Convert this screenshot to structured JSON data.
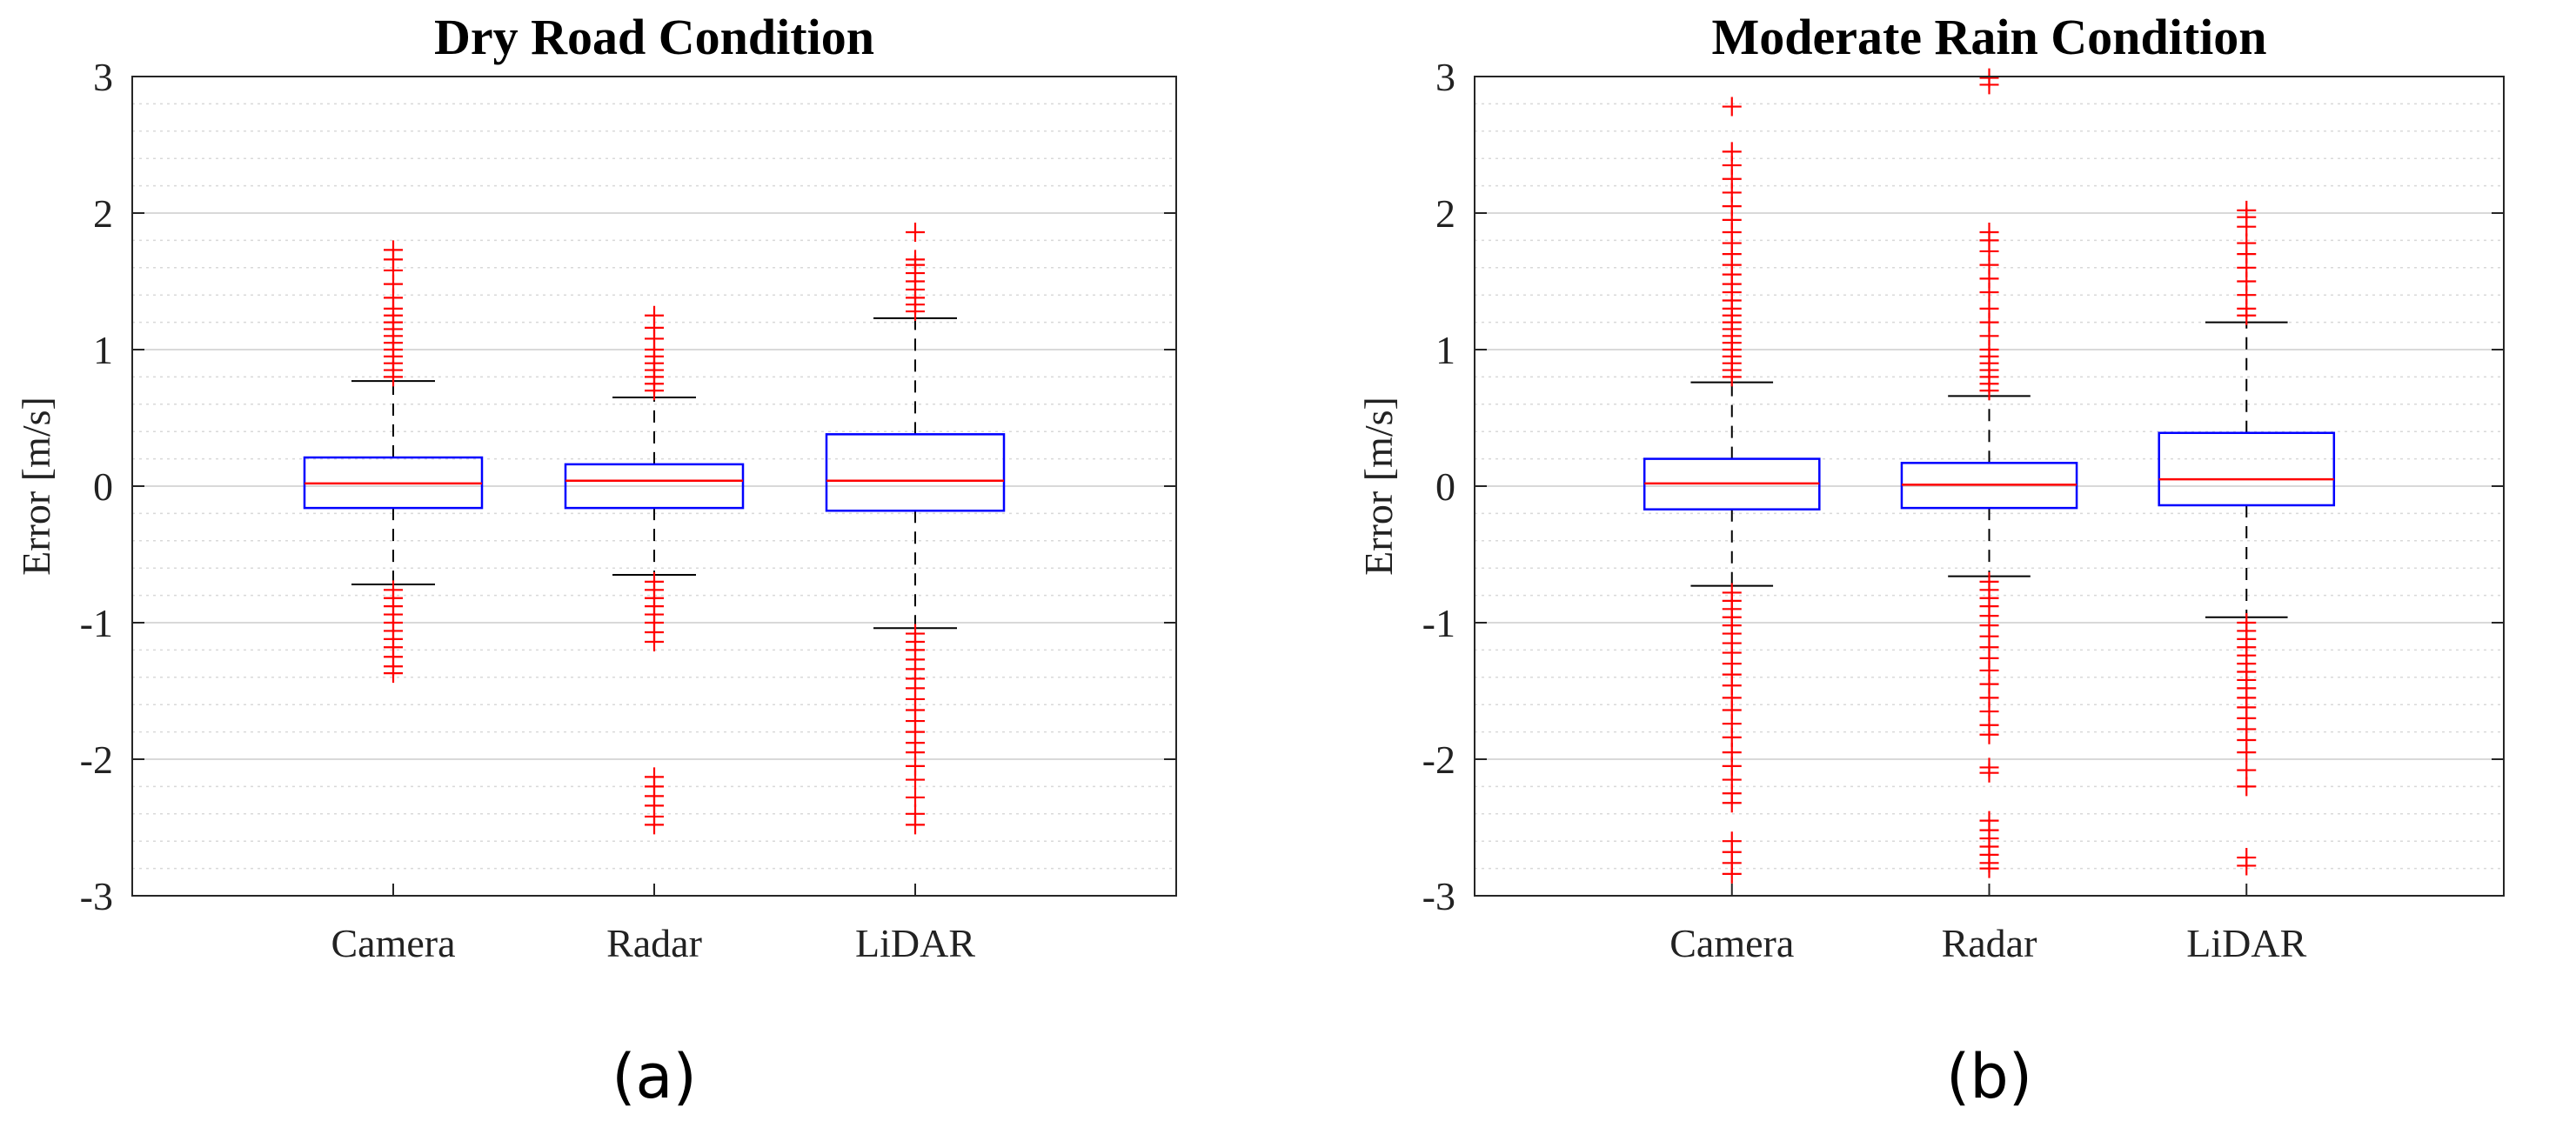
{
  "chart_data": [
    {
      "type": "box",
      "title": "Dry Road Condition",
      "caption": "(a)",
      "xlabel": "",
      "ylabel": "Error [m/s]",
      "ylim": [
        -3,
        3
      ],
      "yticks": [
        -3,
        -2,
        -1,
        0,
        1,
        2,
        3
      ],
      "grid": true,
      "categories": [
        "Camera",
        "Radar",
        "LiDAR"
      ],
      "boxes": [
        {
          "name": "Camera",
          "q1": -0.16,
          "median": 0.02,
          "q3": 0.21,
          "whisker_low": -0.72,
          "whisker_high": 0.77,
          "outliers_high": [
            0.8,
            0.85,
            0.9,
            0.95,
            1.0,
            1.05,
            1.1,
            1.15,
            1.2,
            1.25,
            1.3,
            1.38,
            1.48,
            1.58,
            1.66,
            1.73
          ],
          "outliers_low": [
            -0.76,
            -0.82,
            -0.88,
            -0.94,
            -1.0,
            -1.06,
            -1.12,
            -1.18,
            -1.25,
            -1.32,
            -1.37
          ]
        },
        {
          "name": "Radar",
          "q1": -0.16,
          "median": 0.04,
          "q3": 0.16,
          "whisker_low": -0.65,
          "whisker_high": 0.65,
          "outliers_high": [
            0.7,
            0.75,
            0.8,
            0.85,
            0.9,
            0.95,
            1.0,
            1.08,
            1.16,
            1.25
          ],
          "outliers_low": [
            -0.7,
            -0.76,
            -0.82,
            -0.88,
            -0.94,
            -1.0,
            -1.07,
            -1.14,
            -2.13,
            -2.2,
            -2.27,
            -2.34,
            -2.42,
            -2.48
          ]
        },
        {
          "name": "LiDAR",
          "q1": -0.18,
          "median": 0.04,
          "q3": 0.38,
          "whisker_low": -1.04,
          "whisker_high": 1.23,
          "outliers_high": [
            1.28,
            1.33,
            1.38,
            1.44,
            1.5,
            1.56,
            1.62,
            1.66,
            1.86
          ],
          "outliers_low": [
            -1.08,
            -1.14,
            -1.2,
            -1.27,
            -1.34,
            -1.41,
            -1.48,
            -1.56,
            -1.64,
            -1.72,
            -1.8,
            -1.88,
            -1.95,
            -2.05,
            -2.15,
            -2.28,
            -2.4,
            -2.48
          ]
        }
      ]
    },
    {
      "type": "box",
      "title": "Moderate Rain Condition",
      "caption": "(b)",
      "xlabel": "",
      "ylabel": "Error [m/s]",
      "ylim": [
        -3,
        3
      ],
      "yticks": [
        -3,
        -2,
        -1,
        0,
        1,
        2,
        3
      ],
      "grid": true,
      "categories": [
        "Camera",
        "Radar",
        "LiDAR"
      ],
      "boxes": [
        {
          "name": "Camera",
          "q1": -0.17,
          "median": 0.02,
          "q3": 0.2,
          "whisker_low": -0.73,
          "whisker_high": 0.76,
          "outliers_high": [
            0.8,
            0.85,
            0.9,
            0.95,
            1.0,
            1.05,
            1.1,
            1.15,
            1.2,
            1.25,
            1.3,
            1.36,
            1.42,
            1.48,
            1.55,
            1.62,
            1.7,
            1.78,
            1.86,
            1.95,
            2.05,
            2.15,
            2.25,
            2.35,
            2.45,
            2.78
          ],
          "outliers_low": [
            -0.78,
            -0.84,
            -0.9,
            -0.96,
            -1.02,
            -1.08,
            -1.15,
            -1.22,
            -1.3,
            -1.38,
            -1.46,
            -1.55,
            -1.64,
            -1.74,
            -1.84,
            -1.95,
            -2.05,
            -2.15,
            -2.25,
            -2.32,
            -2.6,
            -2.68,
            -2.76,
            -2.84
          ]
        },
        {
          "name": "Radar",
          "q1": -0.16,
          "median": 0.01,
          "q3": 0.17,
          "whisker_low": -0.66,
          "whisker_high": 0.66,
          "outliers_high": [
            0.7,
            0.75,
            0.8,
            0.85,
            0.9,
            0.95,
            1.0,
            1.1,
            1.2,
            1.3,
            1.42,
            1.52,
            1.62,
            1.72,
            1.8,
            1.86,
            2.94,
            2.99
          ],
          "outliers_low": [
            -0.7,
            -0.76,
            -0.82,
            -0.88,
            -0.95,
            -1.02,
            -1.1,
            -1.18,
            -1.26,
            -1.35,
            -1.45,
            -1.55,
            -1.65,
            -1.75,
            -1.82,
            -2.06,
            -2.1,
            -2.45,
            -2.52,
            -2.58,
            -2.64,
            -2.7,
            -2.76,
            -2.8
          ]
        },
        {
          "name": "LiDAR",
          "q1": -0.14,
          "median": 0.05,
          "q3": 0.39,
          "whisker_low": -0.96,
          "whisker_high": 1.2,
          "outliers_high": [
            1.25,
            1.3,
            1.4,
            1.5,
            1.6,
            1.7,
            1.78,
            1.9,
            1.97,
            2.02
          ],
          "outliers_low": [
            -1.0,
            -1.06,
            -1.12,
            -1.18,
            -1.24,
            -1.3,
            -1.36,
            -1.42,
            -1.48,
            -1.55,
            -1.62,
            -1.7,
            -1.78,
            -1.86,
            -1.95,
            -2.08,
            -2.2,
            -2.72,
            -2.78
          ]
        }
      ]
    }
  ],
  "colors": {
    "box": "#0000ff",
    "median": "#ff0000",
    "outlier": "#ff0000",
    "whisker": "#000000",
    "grid": "#d9d9d9",
    "axis": "#262626"
  }
}
